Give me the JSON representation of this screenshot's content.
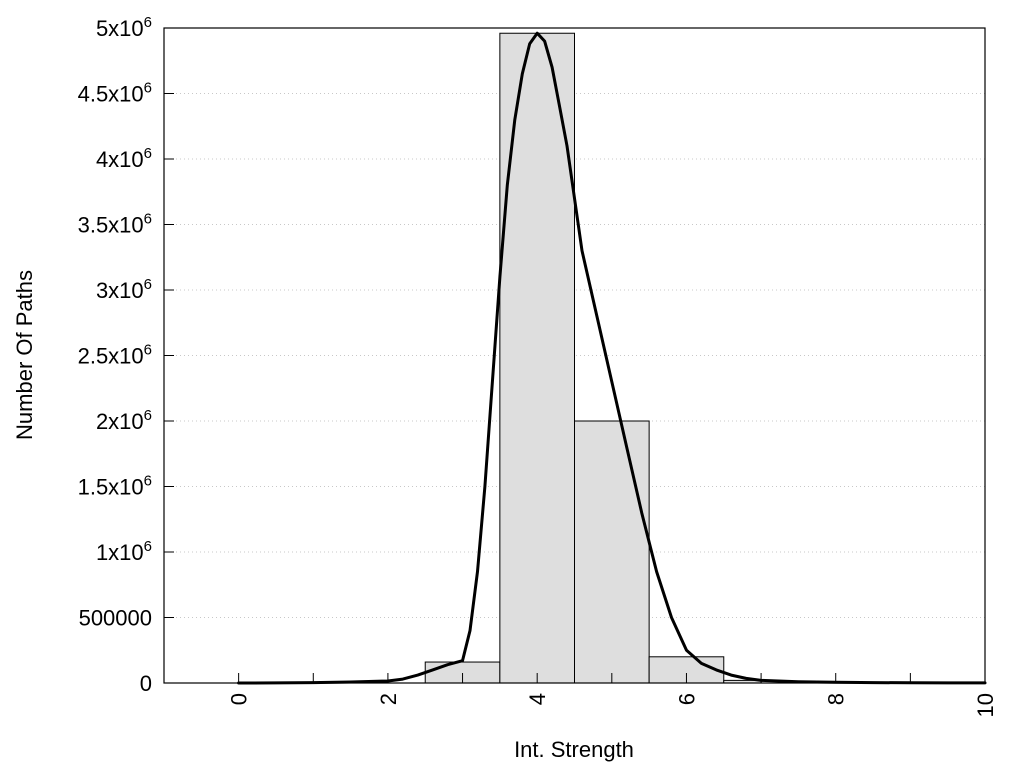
{
  "chart_data": {
    "type": "bar",
    "title": "",
    "xlabel": "Int. Strength",
    "ylabel": "Number Of Paths",
    "xlim": [
      -1,
      10
    ],
    "ylim": [
      0,
      5000000
    ],
    "grid": "horizontal dotted",
    "x_ticks": [
      {
        "value": 0,
        "label": "0"
      },
      {
        "value": 2,
        "label": "2"
      },
      {
        "value": 4,
        "label": "4"
      },
      {
        "value": 6,
        "label": "6"
      },
      {
        "value": 8,
        "label": "8"
      },
      {
        "value": 10,
        "label": "10"
      }
    ],
    "x_minor_ticks": [
      0,
      1,
      2,
      3,
      4,
      5,
      6,
      7,
      8,
      9,
      10
    ],
    "y_ticks": [
      {
        "value": 0,
        "base": "0",
        "exp": ""
      },
      {
        "value": 500000,
        "base": "500000",
        "exp": ""
      },
      {
        "value": 1000000,
        "base": "1x10",
        "exp": "6"
      },
      {
        "value": 1500000,
        "base": "1.5x10",
        "exp": "6"
      },
      {
        "value": 2000000,
        "base": "2x10",
        "exp": "6"
      },
      {
        "value": 2500000,
        "base": "2.5x10",
        "exp": "6"
      },
      {
        "value": 3000000,
        "base": "3x10",
        "exp": "6"
      },
      {
        "value": 3500000,
        "base": "3.5x10",
        "exp": "6"
      },
      {
        "value": 4000000,
        "base": "4x10",
        "exp": "6"
      },
      {
        "value": 4500000,
        "base": "4.5x10",
        "exp": "6"
      },
      {
        "value": 5000000,
        "base": "5x10",
        "exp": "6"
      }
    ],
    "bars": [
      {
        "x0": 0,
        "x1": 1,
        "value": 0
      },
      {
        "x0": 1,
        "x1": 2,
        "value": 0
      },
      {
        "x0": 2,
        "x1": 3,
        "value": 0
      },
      {
        "x0": 2.5,
        "x1": 3.5,
        "value": 160000
      },
      {
        "x0": 3.5,
        "x1": 4.5,
        "value": 4960000
      },
      {
        "x0": 4.5,
        "x1": 5.5,
        "value": 2000000
      },
      {
        "x0": 5.5,
        "x1": 6.5,
        "value": 200000
      },
      {
        "x0": 6.5,
        "x1": 7,
        "value": 20000
      }
    ],
    "series": [
      {
        "type": "line",
        "x": [
          0,
          0.5,
          1,
          1.5,
          2,
          2.2,
          2.4,
          2.6,
          2.8,
          3,
          3.1,
          3.2,
          3.3,
          3.4,
          3.5,
          3.6,
          3.7,
          3.8,
          3.9,
          4,
          4.1,
          4.2,
          4.3,
          4.4,
          4.5,
          4.6,
          4.8,
          5,
          5.2,
          5.4,
          5.6,
          5.8,
          6,
          6.2,
          6.4,
          6.6,
          6.8,
          7,
          7.5,
          8,
          8.5,
          9,
          9.5,
          10
        ],
        "y": [
          0,
          1000,
          3000,
          8000,
          15000,
          30000,
          60000,
          100000,
          140000,
          170000,
          400000,
          850000,
          1500000,
          2300000,
          3100000,
          3800000,
          4300000,
          4650000,
          4880000,
          4960000,
          4900000,
          4700000,
          4400000,
          4100000,
          3700000,
          3300000,
          2800000,
          2300000,
          1800000,
          1300000,
          850000,
          500000,
          250000,
          150000,
          100000,
          60000,
          35000,
          20000,
          10000,
          5000,
          3000,
          1500,
          800,
          500
        ]
      }
    ]
  }
}
